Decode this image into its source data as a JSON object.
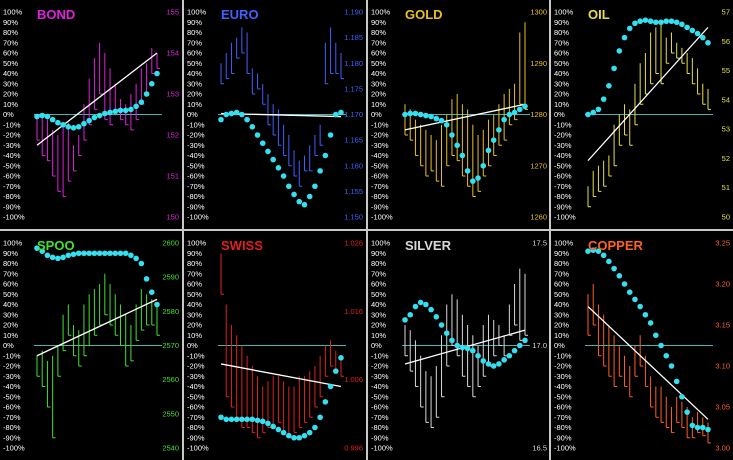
{
  "colors": {
    "background": "#000000",
    "zero_line": "#4fb0b0",
    "trend": "#ffffff",
    "dots": "#33e0f0",
    "pct_labels": "#ffffff",
    "separator": "#c8c8c8"
  },
  "chart_data": [
    {
      "type": "bar",
      "title": "BOND",
      "color": "#e020e0",
      "y_ticks_pct": [
        "100%",
        "90%",
        "80%",
        "70%",
        "60%",
        "50%",
        "40%",
        "30%",
        "20%",
        "10%",
        "0%",
        "-10%",
        "-20%",
        "-30%",
        "-40%",
        "-50%",
        "-60%",
        "-70%",
        "-80%",
        "-90%",
        "-100%"
      ],
      "y2_ticks": [
        "155",
        "154",
        "153",
        "152",
        "151",
        "150"
      ],
      "y2lim": [
        150,
        155
      ],
      "bars": [
        [
          -3,
          -25
        ],
        [
          -2,
          -40
        ],
        [
          -5,
          -45
        ],
        [
          -15,
          -60
        ],
        [
          -20,
          -75
        ],
        [
          -10,
          -80
        ],
        [
          -8,
          -65
        ],
        [
          -30,
          -55
        ],
        [
          -20,
          -40
        ],
        [
          10,
          -25
        ],
        [
          35,
          -10
        ],
        [
          55,
          5
        ],
        [
          70,
          20
        ],
        [
          60,
          -5
        ],
        [
          45,
          -10
        ],
        [
          30,
          5
        ],
        [
          15,
          -5
        ],
        [
          10,
          -10
        ],
        [
          20,
          -15
        ],
        [
          30,
          -5
        ],
        [
          45,
          10
        ],
        [
          50,
          20
        ],
        [
          65,
          40
        ],
        [
          60,
          45
        ]
      ],
      "dots": [
        -2,
        -1,
        -2,
        -5,
        -8,
        -10,
        -12,
        -13,
        -12,
        -9,
        -6,
        -3,
        -1,
        1,
        2,
        3,
        4,
        4,
        5,
        8,
        12,
        20,
        30,
        40
      ],
      "trend": [
        -30,
        60
      ]
    },
    {
      "type": "bar",
      "title": "EURO",
      "color": "#4060ff",
      "y_ticks_pct": [
        "100%",
        "90%",
        "80%",
        "70%",
        "60%",
        "50%",
        "40%",
        "30%",
        "20%",
        "10%",
        "0%",
        "-10%",
        "-20%",
        "-30%",
        "-40%",
        "-50%",
        "-60%",
        "-70%",
        "-80%",
        "-90%",
        "-100%"
      ],
      "y2_ticks": [
        "1.190",
        "1.185",
        "1.180",
        "1.175",
        "1.170",
        "1.165",
        "1.160",
        "1.155",
        "1.150"
      ],
      "y2lim": [
        1.15,
        1.19
      ],
      "bars": [
        [
          50,
          30
        ],
        [
          60,
          35
        ],
        [
          70,
          40
        ],
        [
          75,
          55
        ],
        [
          85,
          60
        ],
        [
          80,
          40
        ],
        [
          45,
          20
        ],
        [
          40,
          25
        ],
        [
          30,
          10
        ],
        [
          20,
          -10
        ],
        [
          10,
          -20
        ],
        [
          5,
          -30
        ],
        [
          -10,
          -40
        ],
        [
          -20,
          -50
        ],
        [
          -35,
          -60
        ],
        [
          -45,
          -70
        ],
        [
          -40,
          -55
        ],
        [
          -30,
          -55
        ],
        [
          -20,
          -40
        ],
        [
          -10,
          -30
        ],
        [
          70,
          30
        ],
        [
          85,
          40
        ],
        [
          70,
          40
        ],
        [
          60,
          35
        ]
      ],
      "dots": [
        -5,
        0,
        1,
        2,
        0,
        -5,
        -12,
        -20,
        -28,
        -36,
        -44,
        -52,
        -60,
        -70,
        -78,
        -85,
        -88,
        -80,
        -70,
        -55,
        -40,
        -20,
        0,
        2
      ],
      "trend": [
        1,
        -2
      ]
    },
    {
      "type": "bar",
      "title": "GOLD",
      "color": "#e8c020",
      "y_ticks_pct": [
        "100%",
        "90%",
        "80%",
        "70%",
        "60%",
        "50%",
        "40%",
        "30%",
        "20%",
        "10%",
        "0%",
        "-10%",
        "-20%",
        "-30%",
        "-40%",
        "-50%",
        "-60%",
        "-70%",
        "-80%",
        "-90%",
        "-100%"
      ],
      "y2_ticks": [
        "1300",
        "1290",
        "1280",
        "1270",
        "1260"
      ],
      "y2lim": [
        1260,
        1300
      ],
      "bars": [
        [
          10,
          -20
        ],
        [
          5,
          -25
        ],
        [
          -5,
          -40
        ],
        [
          -10,
          -50
        ],
        [
          -15,
          -60
        ],
        [
          -20,
          -55
        ],
        [
          -25,
          -65
        ],
        [
          -10,
          -70
        ],
        [
          0,
          -50
        ],
        [
          15,
          -40
        ],
        [
          20,
          -45
        ],
        [
          10,
          -60
        ],
        [
          5,
          -70
        ],
        [
          -10,
          -80
        ],
        [
          -20,
          -75
        ],
        [
          -15,
          -60
        ],
        [
          -5,
          -50
        ],
        [
          0,
          -40
        ],
        [
          10,
          -30
        ],
        [
          20,
          -25
        ],
        [
          25,
          -10
        ],
        [
          30,
          -5
        ],
        [
          80,
          10
        ],
        [
          90,
          5
        ]
      ],
      "dots": [
        0,
        1,
        1,
        0,
        -1,
        -2,
        -4,
        -6,
        -10,
        -20,
        -30,
        -40,
        -55,
        -65,
        -62,
        -50,
        -35,
        -25,
        -15,
        -5,
        0,
        2,
        5,
        8
      ],
      "trend": [
        -15,
        10
      ]
    },
    {
      "type": "bar",
      "title": "OIL",
      "color": "#e8e040",
      "y_ticks_pct": [
        "100%",
        "90%",
        "80%",
        "70%",
        "60%",
        "50%",
        "40%",
        "30%",
        "20%",
        "10%",
        "0%",
        "-10%",
        "-20%",
        "-30%",
        "-40%",
        "-50%",
        "-60%",
        "-70%",
        "-80%",
        "-90%",
        "-100%"
      ],
      "y2_ticks": [
        "57",
        "56",
        "55",
        "54",
        "53",
        "52",
        "51",
        "50"
      ],
      "y2lim": [
        50,
        57
      ],
      "bars": [
        [
          -70,
          -90
        ],
        [
          -55,
          -80
        ],
        [
          -50,
          -75
        ],
        [
          -45,
          -70
        ],
        [
          -40,
          -60
        ],
        [
          -10,
          -50
        ],
        [
          0,
          -30
        ],
        [
          10,
          -20
        ],
        [
          5,
          -30
        ],
        [
          30,
          -10
        ],
        [
          50,
          10
        ],
        [
          60,
          20
        ],
        [
          80,
          30
        ],
        [
          85,
          40
        ],
        [
          90,
          30
        ],
        [
          75,
          50
        ],
        [
          80,
          60
        ],
        [
          70,
          55
        ],
        [
          65,
          50
        ],
        [
          60,
          40
        ],
        [
          55,
          30
        ],
        [
          45,
          20
        ],
        [
          30,
          10
        ],
        [
          25,
          5
        ]
      ],
      "dots": [
        0,
        2,
        5,
        15,
        28,
        45,
        62,
        75,
        84,
        89,
        91,
        92,
        91,
        90,
        90,
        91,
        91,
        90,
        88,
        85,
        82,
        79,
        75,
        70
      ],
      "trend": [
        -45,
        85
      ]
    },
    {
      "type": "bar",
      "title": "SPOO",
      "color": "#40e030",
      "y_ticks_pct": [
        "100%",
        "90%",
        "80%",
        "70%",
        "60%",
        "50%",
        "40%",
        "30%",
        "20%",
        "10%",
        "0%",
        "-10%",
        "-20%",
        "-30%",
        "-40%",
        "-50%",
        "-60%",
        "-70%",
        "-80%",
        "-90%",
        "-100%"
      ],
      "y2_ticks": [
        "2600",
        "2590",
        "2580",
        "2570",
        "2560",
        "2550",
        "2540"
      ],
      "y2lim": [
        2540,
        2600
      ],
      "bars": [
        [
          -10,
          -30
        ],
        [
          -5,
          -40
        ],
        [
          -15,
          -60
        ],
        [
          -10,
          -90
        ],
        [
          0,
          -30
        ],
        [
          30,
          -5
        ],
        [
          40,
          10
        ],
        [
          20,
          -10
        ],
        [
          15,
          -20
        ],
        [
          40,
          -10
        ],
        [
          50,
          0
        ],
        [
          55,
          10
        ],
        [
          60,
          20
        ],
        [
          70,
          30
        ],
        [
          60,
          20
        ],
        [
          50,
          10
        ],
        [
          40,
          0
        ],
        [
          30,
          -20
        ],
        [
          20,
          -15
        ],
        [
          40,
          5
        ],
        [
          55,
          15
        ],
        [
          50,
          20
        ],
        [
          45,
          20
        ],
        [
          40,
          10
        ]
      ],
      "dots": [
        95,
        92,
        88,
        86,
        85,
        86,
        88,
        89,
        90,
        90,
        90,
        90,
        90,
        90,
        90,
        90,
        90,
        90,
        88,
        85,
        80,
        65,
        52,
        40
      ],
      "trend": [
        -10,
        45
      ]
    },
    {
      "type": "bar",
      "title": "SWISS",
      "color": "#e02020",
      "y_ticks_pct": [
        "100%",
        "90%",
        "80%",
        "70%",
        "60%",
        "50%",
        "40%",
        "30%",
        "20%",
        "10%",
        "0%",
        "-10%",
        "-20%",
        "-30%",
        "-40%",
        "-50%",
        "-60%",
        "-70%",
        "-80%",
        "-90%",
        "-100%"
      ],
      "y2_ticks": [
        "1.026",
        "1.016",
        "1.006",
        "0.996"
      ],
      "y2lim": [
        0.996,
        1.026
      ],
      "bars": [
        [
          90,
          50
        ],
        [
          40,
          -50
        ],
        [
          20,
          -60
        ],
        [
          10,
          -70
        ],
        [
          0,
          -80
        ],
        [
          -10,
          -80
        ],
        [
          -20,
          -85
        ],
        [
          -30,
          -90
        ],
        [
          -40,
          -85
        ],
        [
          -35,
          -80
        ],
        [
          -30,
          -80
        ],
        [
          -30,
          -75
        ],
        [
          -35,
          -85
        ],
        [
          -40,
          -90
        ],
        [
          -40,
          -85
        ],
        [
          -30,
          -80
        ],
        [
          -30,
          -75
        ],
        [
          -25,
          -70
        ],
        [
          -20,
          -60
        ],
        [
          -10,
          -50
        ],
        [
          0,
          -30
        ],
        [
          5,
          -20
        ],
        [
          -5,
          -25
        ],
        [
          -10,
          -30
        ]
      ],
      "dots": [
        -70,
        -72,
        -72,
        -72,
        -72,
        -72,
        -72,
        -73,
        -74,
        -76,
        -79,
        -82,
        -85,
        -88,
        -90,
        -90,
        -88,
        -85,
        -80,
        -70,
        -55,
        -40,
        -25,
        -12
      ],
      "trend": [
        -18,
        -40
      ]
    },
    {
      "type": "bar",
      "title": "SILVER",
      "color": "#d8d8d8",
      "y_ticks_pct": [
        "100%",
        "90%",
        "80%",
        "70%",
        "60%",
        "50%",
        "40%",
        "30%",
        "20%",
        "10%",
        "0%",
        "-10%",
        "-20%",
        "-30%",
        "-40%",
        "-50%",
        "-60%",
        "-70%",
        "-80%",
        "-90%",
        "-100%"
      ],
      "y2_ticks": [
        "17.5",
        "17.0",
        "16.5"
      ],
      "y2lim": [
        16.5,
        17.5
      ],
      "bars": [
        [
          20,
          -10
        ],
        [
          15,
          -25
        ],
        [
          5,
          -40
        ],
        [
          -10,
          -60
        ],
        [
          -25,
          -75
        ],
        [
          -30,
          -80
        ],
        [
          -20,
          -70
        ],
        [
          10,
          -50
        ],
        [
          40,
          -20
        ],
        [
          50,
          0
        ],
        [
          45,
          -10
        ],
        [
          30,
          -30
        ],
        [
          20,
          -40
        ],
        [
          10,
          -50
        ],
        [
          0,
          -40
        ],
        [
          20,
          -30
        ],
        [
          30,
          -20
        ],
        [
          25,
          -10
        ],
        [
          20,
          0
        ],
        [
          10,
          -10
        ],
        [
          40,
          10
        ],
        [
          60,
          20
        ],
        [
          75,
          5
        ],
        [
          70,
          10
        ]
      ],
      "dots": [
        25,
        30,
        38,
        42,
        40,
        35,
        28,
        20,
        12,
        5,
        0,
        -2,
        -3,
        -5,
        -10,
        -15,
        -18,
        -20,
        -18,
        -14,
        -10,
        -5,
        0,
        5
      ],
      "trend": [
        -18,
        15
      ]
    },
    {
      "type": "bar",
      "title": "COPPER",
      "color": "#ff6020",
      "y_ticks_pct": [
        "100%",
        "90%",
        "80%",
        "70%",
        "60%",
        "50%",
        "40%",
        "30%",
        "20%",
        "10%",
        "0%",
        "-10%",
        "-20%",
        "-30%",
        "-40%",
        "-50%",
        "-60%",
        "-70%",
        "-80%",
        "-90%",
        "-100%"
      ],
      "y2_ticks": [
        "3.25",
        "3.20",
        "3.15",
        "3.10",
        "3.05",
        "3.00"
      ],
      "y2lim": [
        3.0,
        3.25
      ],
      "bars": [
        [
          50,
          10
        ],
        [
          60,
          20
        ],
        [
          40,
          -10
        ],
        [
          30,
          -20
        ],
        [
          20,
          -30
        ],
        [
          10,
          -40
        ],
        [
          0,
          -30
        ],
        [
          -10,
          -40
        ],
        [
          -20,
          -50
        ],
        [
          0,
          -30
        ],
        [
          10,
          -20
        ],
        [
          -10,
          -40
        ],
        [
          -30,
          -60
        ],
        [
          -40,
          -70
        ],
        [
          -40,
          -75
        ],
        [
          -50,
          -80
        ],
        [
          -60,
          -85
        ],
        [
          -50,
          -75
        ],
        [
          -55,
          -80
        ],
        [
          -60,
          -90
        ],
        [
          -70,
          -90
        ],
        [
          -65,
          -85
        ],
        [
          -70,
          -88
        ],
        [
          -75,
          -95
        ]
      ],
      "dots": [
        92,
        93,
        92,
        88,
        82,
        75,
        68,
        60,
        52,
        45,
        38,
        30,
        22,
        10,
        0,
        -10,
        -20,
        -35,
        -50,
        -65,
        -78,
        -80,
        -80,
        -82
      ],
      "trend": [
        38,
        -72
      ]
    }
  ]
}
